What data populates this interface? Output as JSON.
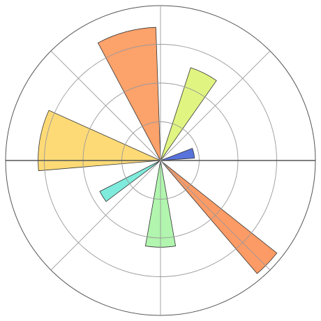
{
  "chart_data": {
    "type": "bar",
    "subtype": "polar",
    "title": "",
    "grid": true,
    "radial_grid_count": 4,
    "angular_gridlines_deg": [
      0,
      45,
      90,
      135,
      180,
      225,
      270,
      315
    ],
    "series": [
      {
        "angle_deg": 12.5,
        "width_deg": 17,
        "r": 0.22,
        "color": "#3b5bd6"
      },
      {
        "angle_deg": 63.5,
        "width_deg": 17,
        "r": 0.63,
        "color": "#dbf26b"
      },
      {
        "angle_deg": 105.0,
        "width_deg": 26,
        "r": 0.86,
        "color": "#fb9251"
      },
      {
        "angle_deg": 170.3,
        "width_deg": 29,
        "r": 0.79,
        "color": "#fdd45e"
      },
      {
        "angle_deg": 212.0,
        "width_deg": 10,
        "r": 0.44,
        "color": "#69e8d6"
      },
      {
        "angle_deg": 270.0,
        "width_deg": 20,
        "r": 0.56,
        "color": "#a3f3a0"
      },
      {
        "angle_deg": 316.0,
        "width_deg": 11,
        "r": 0.96,
        "color": "#fb8a4b"
      }
    ],
    "rlim": [
      0,
      1
    ]
  }
}
